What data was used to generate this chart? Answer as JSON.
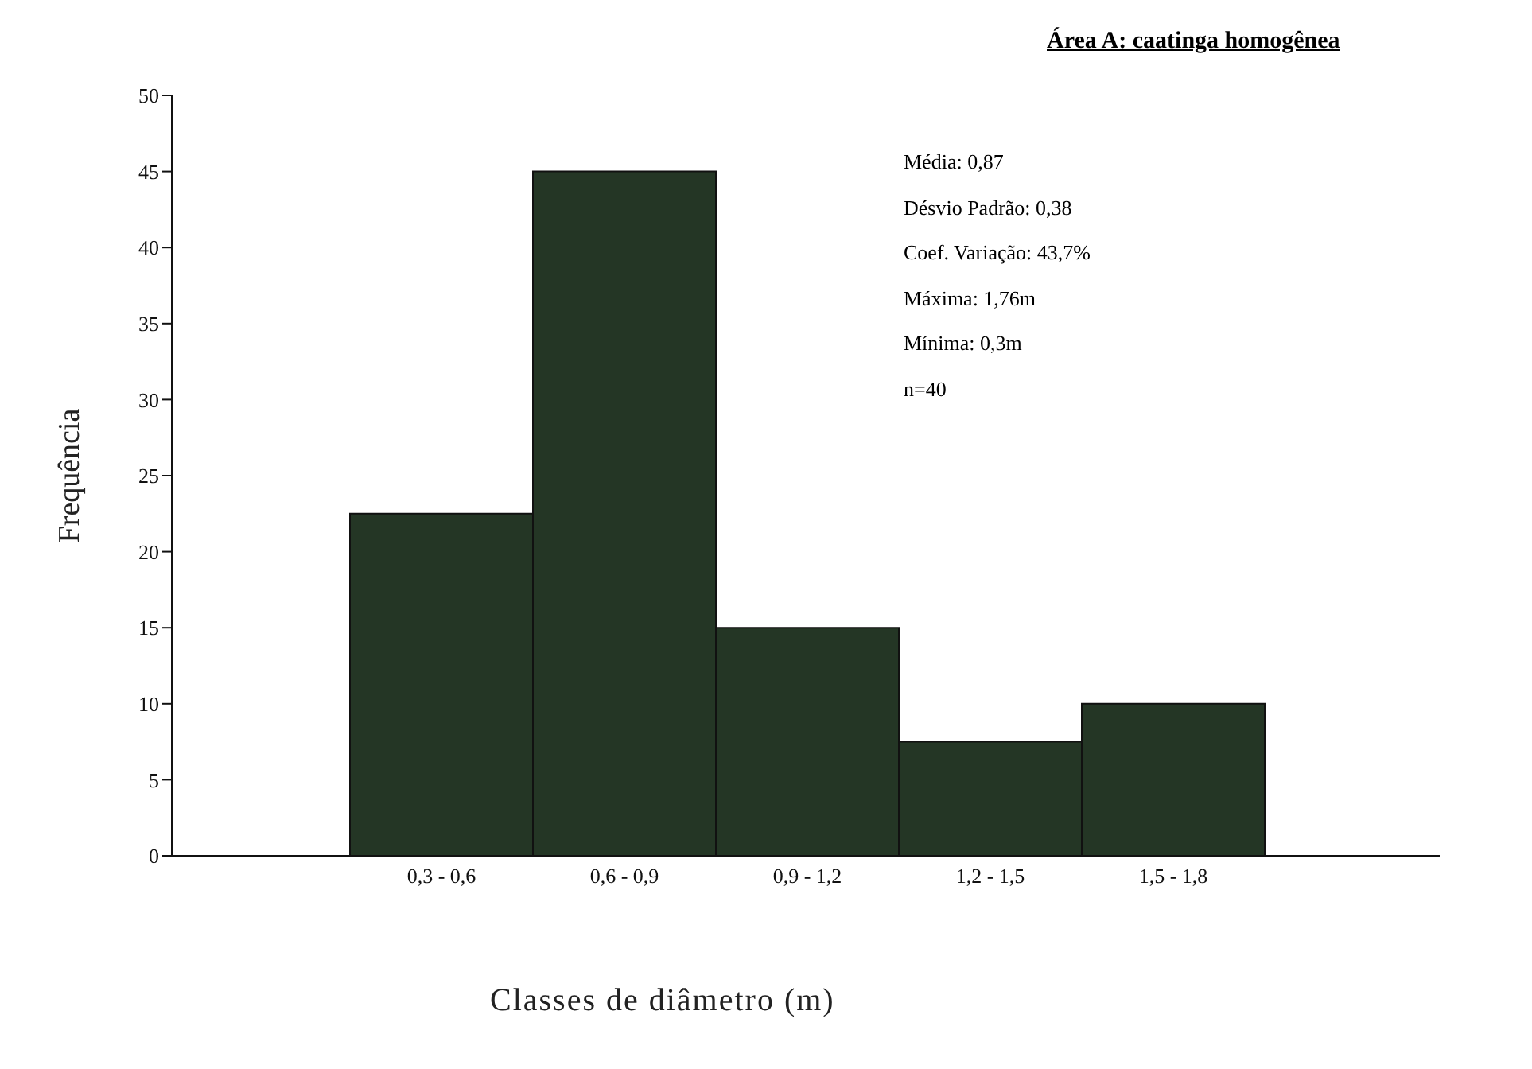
{
  "chart_data": {
    "type": "bar",
    "title": "Área A: caatinga homogênea",
    "xlabel": "Classes de diâmetro (m)",
    "ylabel": "Frequência",
    "categories": [
      "0,3 - 0,6",
      "0,6 - 0,9",
      "0,9 - 1,2",
      "1,2 - 1,5",
      "1,5 - 1,8"
    ],
    "values": [
      22.5,
      45,
      15,
      7.5,
      10
    ],
    "color": "#243625",
    "ylim": [
      0,
      50
    ],
    "yticks": [
      0,
      5,
      10,
      15,
      20,
      25,
      30,
      35,
      40,
      45,
      50
    ],
    "grid": false,
    "legend": false,
    "annotations": [
      "Média: 0,87",
      "Désvio Padrão: 0,38",
      "Coef. Variação: 43,7%",
      "Máxima: 1,76m",
      "Mínima: 0,3m",
      "n=40"
    ]
  }
}
